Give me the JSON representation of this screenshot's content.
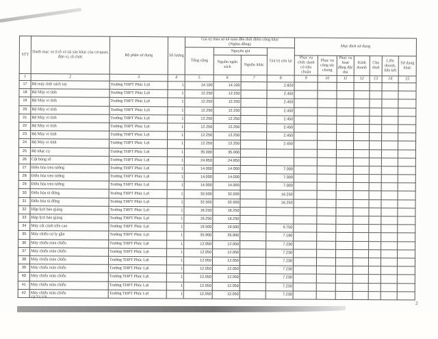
{
  "header": {
    "stt": "STT",
    "name": "Danh mục xe ô tô và tài sản khác của cơ quan, đơn vị, tổ chức",
    "dept": "Bộ phận sử dụng",
    "qty": "Số lượng",
    "value_group": "Giá trị theo sổ kế toán đến thời điểm công khai",
    "value_unit": "(Nghìn đồng)",
    "total": "Tổng cộng",
    "original": "Nguyên giá",
    "budget": "Nguồn ngân sách",
    "other": "Nguồn khác",
    "residual": "Giá trị còn lại",
    "purpose_group": "Mục đích sử dụng",
    "purposes": [
      "Phục vụ chức danh có tiêu chuẩn",
      "Phục vụ công tác chung",
      "Phục vụ hoạt động đặc thù",
      "Kinh doanh",
      "Cho thuê",
      "Liên doanh, liên kết",
      "Sử dụng khác"
    ],
    "col_numbers": [
      "1",
      "2",
      "3",
      "4",
      "5",
      "6",
      "7",
      "8",
      "9",
      "10",
      "11",
      "12",
      "13",
      "14",
      "15"
    ]
  },
  "rows": [
    {
      "stt": "17",
      "name": "Bộ máy tính xách tay",
      "dept": "Trường THPT Phúc Lợi",
      "qty": "1",
      "total": "14.100",
      "budget": "14.100",
      "residual": "2.820"
    },
    {
      "stt": "18",
      "name": "Bộ Máy vi tính",
      "dept": "Trường THPT Phúc Lợi",
      "qty": "1",
      "total": "12.250",
      "budget": "12.250",
      "residual": "2.450"
    },
    {
      "stt": "19",
      "name": "Bộ Máy vi tính",
      "dept": "Trường THPT Phúc Lợi",
      "qty": "1",
      "total": "12.250",
      "budget": "12.250",
      "residual": "2.450"
    },
    {
      "stt": "20",
      "name": "Bộ Máy vi tính",
      "dept": "Trường THPT Phúc Lợi",
      "qty": "1",
      "total": "12.250",
      "budget": "12.250",
      "residual": "2.450"
    },
    {
      "stt": "21",
      "name": "Bộ Máy vi tính",
      "dept": "Trường THPT Phúc Lợi",
      "qty": "1",
      "total": "12.250",
      "budget": "12.250",
      "residual": "2.450"
    },
    {
      "stt": "22",
      "name": "Bộ Máy vi tính",
      "dept": "Trường THPT Phúc Lợi",
      "qty": "1",
      "total": "12.250",
      "budget": "12.250",
      "residual": "2.450"
    },
    {
      "stt": "23",
      "name": "Bộ Máy vi tính",
      "dept": "Trường THPT Phúc Lợi",
      "qty": "1",
      "total": "12.250",
      "budget": "12.250",
      "residual": "2.450"
    },
    {
      "stt": "24",
      "name": "Bộ Máy vi tính",
      "dept": "Trường THPT Phúc Lợi",
      "qty": "1",
      "total": "12.250",
      "budget": "12.250",
      "residual": "2.450"
    },
    {
      "stt": "25",
      "name": "Bộ nhạc cụ",
      "dept": "Trường THPT Phúc Lợi",
      "qty": "1",
      "total": "35.000",
      "budget": "35.000",
      "residual": ""
    },
    {
      "stt": "26",
      "name": "Cột bóng rổ",
      "dept": "Trường THPT Phúc Lợi",
      "qty": "1",
      "total": "24.850",
      "budget": "24.850",
      "residual": ""
    },
    {
      "stt": "27",
      "name": "Điều hòa treo tường",
      "dept": "Trường THPT Phúc Lợi",
      "qty": "1",
      "total": "14.000",
      "budget": "14.000",
      "residual": "7.000"
    },
    {
      "stt": "28",
      "name": "Điều hòa treo tường",
      "dept": "Trường THPT Phúc Lợi",
      "qty": "1",
      "total": "14.000",
      "budget": "14.000",
      "residual": "7.000"
    },
    {
      "stt": "29",
      "name": "Điều hòa treo tường",
      "dept": "Trường THPT Phúc Lợi",
      "qty": "1",
      "total": "14.000",
      "budget": "14.000",
      "residual": "7.000"
    },
    {
      "stt": "30",
      "name": "Điều hòa tủ đứng",
      "dept": "Trường THPT Phúc Lợi",
      "qty": "1",
      "total": "32.500",
      "budget": "32.500",
      "residual": "16.250"
    },
    {
      "stt": "31",
      "name": "Điều hòa tủ đứng",
      "dept": "Trường THPT Phúc Lợi",
      "qty": "1",
      "total": "32.500",
      "budget": "32.500",
      "residual": "16.250"
    },
    {
      "stt": "32",
      "name": "Hộp lịch báo giảng",
      "dept": "Trường THPT Phúc Lợi",
      "qty": "1",
      "total": "16.250",
      "budget": "16.250",
      "residual": ""
    },
    {
      "stt": "33",
      "name": "Hộp lịch báo giảng",
      "dept": "Trường THPT Phúc Lợi",
      "qty": "1",
      "total": "16.250",
      "budget": "16.250",
      "residual": ""
    },
    {
      "stt": "34",
      "name": "Máy cắt cành trên cao",
      "dept": "Trường THPT Phúc Lợi",
      "qty": "1",
      "total": "19.500",
      "budget": "19.500",
      "residual": "9.750"
    },
    {
      "stt": "35",
      "name": "Máy chiếu cự ly gần",
      "dept": "Trường THPT Phúc Lợi",
      "qty": "1",
      "total": "35.900",
      "budget": "35.900",
      "residual": "7.180"
    },
    {
      "stt": "36",
      "name": "Máy chiếu màn chiếu",
      "dept": "Trường THPT Phúc Lợi",
      "qty": "1",
      "total": "12.050",
      "budget": "12.050",
      "residual": "7.230"
    },
    {
      "stt": "37",
      "name": "Máy chiếu màn chiếu",
      "dept": "Trường THPT Phúc Lợi",
      "qty": "1",
      "total": "12.050",
      "budget": "12.050",
      "residual": "7.230"
    },
    {
      "stt": "38",
      "name": "Máy chiếu màn chiếu",
      "dept": "Trường THPT Phúc Lợi",
      "qty": "1",
      "total": "12.050",
      "budget": "12.050",
      "residual": "7.230"
    },
    {
      "stt": "39",
      "name": "Máy chiếu màn chiếu",
      "dept": "Trường THPT Phúc Lợi",
      "qty": "1",
      "total": "12.050",
      "budget": "12.050",
      "residual": "7.230"
    },
    {
      "stt": "40",
      "name": "Máy chiếu màn chiếu",
      "dept": "Trường THPT Phúc Lợi",
      "qty": "1",
      "total": "12.050",
      "budget": "12.050",
      "residual": "7.230"
    },
    {
      "stt": "41",
      "name": "Máy chiếu màn chiếu",
      "dept": "Trường THPT Phúc Lợi",
      "qty": "1",
      "total": "12.050",
      "budget": "12.050",
      "residual": "7.230"
    },
    {
      "stt": "42",
      "name": "Máy chiếu màn chiếu",
      "dept": "Trường THPT Phúc Lợi",
      "qty": "1",
      "total": "12.050",
      "budget": "12.050",
      "residual": "7.230"
    }
  ],
  "footer": {
    "left": "QLTS.VN",
    "page_number": "2"
  }
}
